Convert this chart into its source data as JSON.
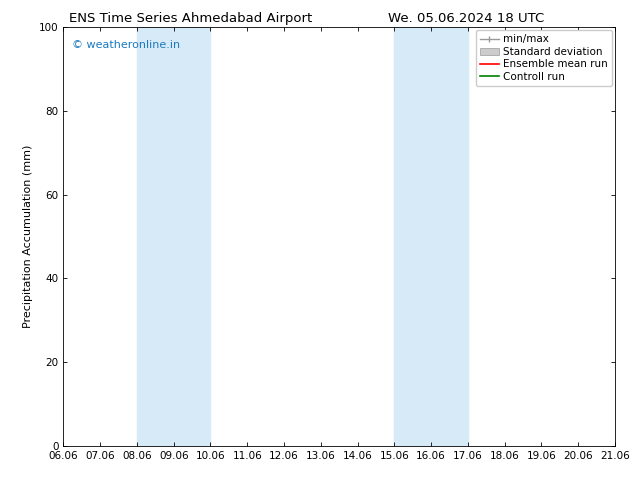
{
  "title_left": "ENS Time Series Ahmedabad Airport",
  "title_right": "We. 05.06.2024 18 UTC",
  "ylabel": "Precipitation Accumulation (mm)",
  "ylim": [
    0,
    100
  ],
  "yticks": [
    0,
    20,
    40,
    60,
    80,
    100
  ],
  "x_start": 6.06,
  "x_end": 21.06,
  "xtick_labels": [
    "06.06",
    "07.06",
    "08.06",
    "09.06",
    "10.06",
    "11.06",
    "12.06",
    "13.06",
    "14.06",
    "15.06",
    "16.06",
    "17.06",
    "18.06",
    "19.06",
    "20.06",
    "21.06"
  ],
  "xtick_positions": [
    6.06,
    7.06,
    8.06,
    9.06,
    10.06,
    11.06,
    12.06,
    13.06,
    14.06,
    15.06,
    16.06,
    17.06,
    18.06,
    19.06,
    20.06,
    21.06
  ],
  "shaded_regions": [
    {
      "x_start": 8.06,
      "x_end": 10.06,
      "color": "#d6eaf8"
    },
    {
      "x_start": 15.06,
      "x_end": 17.06,
      "color": "#d6eaf8"
    }
  ],
  "watermark_text": "© weatheronline.in",
  "watermark_color": "#1a7abf",
  "background_color": "#ffffff",
  "legend_items": [
    {
      "label": "min/max",
      "color": "#999999",
      "type": "minmax"
    },
    {
      "label": "Standard deviation",
      "color": "#cccccc",
      "type": "stddev"
    },
    {
      "label": "Ensemble mean run",
      "color": "#ff0000",
      "type": "line"
    },
    {
      "label": "Controll run",
      "color": "#008000",
      "type": "line"
    }
  ],
  "title_fontsize": 9.5,
  "axis_fontsize": 8,
  "tick_fontsize": 7.5,
  "legend_fontsize": 7.5,
  "watermark_fontsize": 8
}
